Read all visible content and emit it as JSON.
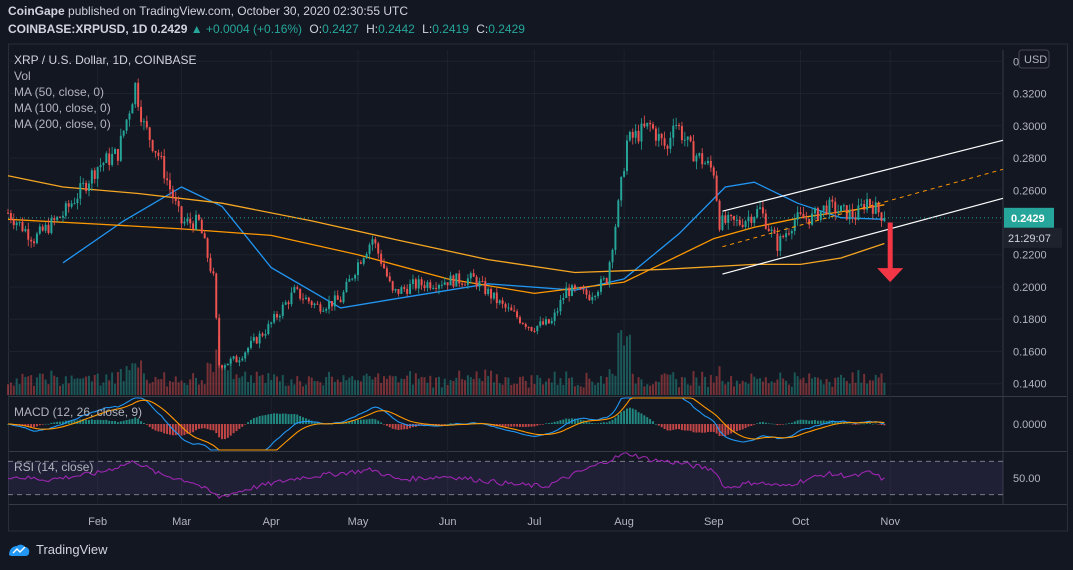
{
  "header": {
    "publisher": "CoinGape",
    "published_text": "published on TradingView.com, October 30, 2020 02:30:55 UTC",
    "symbol_line": "COINBASE:XRPUSD, 1D",
    "last": "0.2429",
    "change": "+0.0004 (+0.16%)",
    "o": "0.2427",
    "h": "0.2442",
    "l": "0.2419",
    "c": "0.2429",
    "o_label": "O:",
    "h_label": "H:",
    "l_label": "L:",
    "c_label": "C:"
  },
  "legend": {
    "title": "XRP / U.S. Dollar, 1D, COINBASE",
    "vol": "Vol",
    "ma50": "MA (50, close, 0)",
    "ma100": "MA (100, close, 0)",
    "ma200": "MA (200, close, 0)"
  },
  "currency_badge": "USD",
  "price_label": "0.2429",
  "countdown": "21:29:07",
  "macd_label": "MACD (12, 26, close, 9)",
  "rsi_label": "RSI (14, close)",
  "footer_brand": "TradingView",
  "colors": {
    "up": "#26a69a",
    "down": "#ef5350",
    "ma_blue": "#2196f3",
    "ma_orange": "#ff9800",
    "ma_gold": "#f5a623",
    "rsi": "#9c27b0",
    "arrow": "#f23645"
  },
  "chart_data": {
    "type": "candlestick",
    "symbol": "XRPUSD",
    "price_axis": {
      "ylim": [
        0.133,
        0.347
      ],
      "ticks": [
        "0.3400",
        "0.3200",
        "0.3000",
        "0.2800",
        "0.2600",
        "0.2400",
        "0.2200",
        "0.2000",
        "0.1800",
        "0.1600",
        "0.1400"
      ],
      "tick_values": [
        0.34,
        0.32,
        0.3,
        0.28,
        0.26,
        0.24,
        0.22,
        0.2,
        0.18,
        0.16,
        0.14
      ]
    },
    "time_axis": {
      "labels": [
        "Feb",
        "Mar",
        "Apr",
        "May",
        "Jun",
        "Jul",
        "Aug",
        "Sep",
        "Oct",
        "Nov"
      ],
      "label_dates": [
        "2020-02-01",
        "2020-03-01",
        "2020-04-01",
        "2020-05-01",
        "2020-06-01",
        "2020-07-01",
        "2020-08-01",
        "2020-09-01",
        "2020-10-01",
        "2020-11-01"
      ],
      "start_date": "2020-01-01",
      "end_date": "2020-12-10"
    },
    "price_path": [
      [
        "2020-01-01",
        0.246
      ],
      [
        "2020-01-10",
        0.23
      ],
      [
        "2020-01-20",
        0.245
      ],
      [
        "2020-01-27",
        0.262
      ],
      [
        "2020-02-01",
        0.275
      ],
      [
        "2020-02-08",
        0.283
      ],
      [
        "2020-02-14",
        0.325
      ],
      [
        "2020-02-17",
        0.3
      ],
      [
        "2020-02-22",
        0.282
      ],
      [
        "2020-03-01",
        0.24
      ],
      [
        "2020-03-07",
        0.24
      ],
      [
        "2020-03-12",
        0.205
      ],
      [
        "2020-03-14",
        0.152
      ],
      [
        "2020-03-20",
        0.155
      ],
      [
        "2020-03-31",
        0.175
      ],
      [
        "2020-04-09",
        0.197
      ],
      [
        "2020-04-17",
        0.188
      ],
      [
        "2020-04-25",
        0.192
      ],
      [
        "2020-05-01",
        0.215
      ],
      [
        "2020-05-06",
        0.23
      ],
      [
        "2020-05-10",
        0.212
      ],
      [
        "2020-05-13",
        0.196
      ],
      [
        "2020-05-20",
        0.201
      ],
      [
        "2020-06-01",
        0.204
      ],
      [
        "2020-06-10",
        0.205
      ],
      [
        "2020-06-20",
        0.188
      ],
      [
        "2020-06-30",
        0.175
      ],
      [
        "2020-07-07",
        0.178
      ],
      [
        "2020-07-12",
        0.198
      ],
      [
        "2020-07-20",
        0.195
      ],
      [
        "2020-07-26",
        0.205
      ],
      [
        "2020-07-30",
        0.25
      ],
      [
        "2020-08-02",
        0.29
      ],
      [
        "2020-08-06",
        0.295
      ],
      [
        "2020-08-10",
        0.3
      ],
      [
        "2020-08-16",
        0.285
      ],
      [
        "2020-08-18",
        0.305
      ],
      [
        "2020-08-24",
        0.285
      ],
      [
        "2020-09-01",
        0.272
      ],
      [
        "2020-09-03",
        0.24
      ],
      [
        "2020-09-10",
        0.24
      ],
      [
        "2020-09-17",
        0.248
      ],
      [
        "2020-09-23",
        0.226
      ],
      [
        "2020-09-29",
        0.242
      ],
      [
        "2020-10-05",
        0.243
      ],
      [
        "2020-10-10",
        0.25
      ],
      [
        "2020-10-15",
        0.247
      ],
      [
        "2020-10-20",
        0.244
      ],
      [
        "2020-10-24",
        0.254
      ],
      [
        "2020-10-30",
        0.2429
      ]
    ],
    "current_price": 0.2429,
    "ma": [
      {
        "name": "MA (50, close, 0)",
        "color": "#2196f3",
        "points": [
          [
            "2020-01-20",
            0.215
          ],
          [
            "2020-02-10",
            0.241
          ],
          [
            "2020-03-01",
            0.262
          ],
          [
            "2020-03-15",
            0.25
          ],
          [
            "2020-04-01",
            0.212
          ],
          [
            "2020-04-25",
            0.187
          ],
          [
            "2020-05-15",
            0.193
          ],
          [
            "2020-06-15",
            0.202
          ],
          [
            "2020-07-15",
            0.198
          ],
          [
            "2020-08-01",
            0.205
          ],
          [
            "2020-08-20",
            0.233
          ],
          [
            "2020-09-05",
            0.262
          ],
          [
            "2020-09-15",
            0.265
          ],
          [
            "2020-09-30",
            0.252
          ],
          [
            "2020-10-15",
            0.243
          ],
          [
            "2020-10-30",
            0.242
          ]
        ]
      },
      {
        "name": "MA (100, close, 0)",
        "color": "#ff9800",
        "points": [
          [
            "2020-01-01",
            0.242
          ],
          [
            "2020-02-01",
            0.239
          ],
          [
            "2020-03-01",
            0.236
          ],
          [
            "2020-04-01",
            0.232
          ],
          [
            "2020-05-01",
            0.22
          ],
          [
            "2020-06-01",
            0.205
          ],
          [
            "2020-07-01",
            0.196
          ],
          [
            "2020-08-01",
            0.203
          ],
          [
            "2020-09-01",
            0.23
          ],
          [
            "2020-09-15",
            0.237
          ],
          [
            "2020-10-01",
            0.243
          ],
          [
            "2020-10-20",
            0.248
          ],
          [
            "2020-10-30",
            0.251
          ]
        ]
      },
      {
        "name": "MA (200, close, 0)",
        "color": "#f5a623",
        "points": [
          [
            "2020-01-01",
            0.269
          ],
          [
            "2020-01-20",
            0.262
          ],
          [
            "2020-02-15",
            0.258
          ],
          [
            "2020-03-15",
            0.252
          ],
          [
            "2020-04-15",
            0.241
          ],
          [
            "2020-05-15",
            0.229
          ],
          [
            "2020-06-15",
            0.217
          ],
          [
            "2020-07-15",
            0.209
          ],
          [
            "2020-08-15",
            0.211
          ],
          [
            "2020-09-15",
            0.214
          ],
          [
            "2020-10-01",
            0.214
          ],
          [
            "2020-10-15",
            0.218
          ],
          [
            "2020-10-30",
            0.227
          ]
        ]
      }
    ],
    "channel": {
      "upper": [
        [
          "2020-09-04",
          0.247
        ],
        [
          "2020-12-10",
          0.291
        ]
      ],
      "lower": [
        [
          "2020-09-04",
          0.208
        ],
        [
          "2020-12-10",
          0.255
        ]
      ],
      "mid_dashed": [
        [
          "2020-09-04",
          0.225
        ],
        [
          "2020-12-10",
          0.273
        ]
      ],
      "color": "#ffffff"
    },
    "arrow": {
      "date": "2020-11-01",
      "from": 0.24,
      "to": 0.203,
      "direction": "down"
    },
    "volume_peak_date": "2020-08-01",
    "macd": {
      "ylim": [
        -0.015,
        0.015
      ],
      "ticks": [
        "0.0000"
      ],
      "tick_values": [
        0
      ]
    },
    "rsi": {
      "ylim": [
        20,
        80
      ],
      "ticks": [
        "50.00"
      ],
      "tick_values": [
        50
      ],
      "bands": [
        70,
        30
      ],
      "points": [
        [
          "2020-01-01",
          52
        ],
        [
          "2020-01-15",
          48
        ],
        [
          "2020-02-01",
          56
        ],
        [
          "2020-02-14",
          70
        ],
        [
          "2020-02-22",
          55
        ],
        [
          "2020-03-05",
          45
        ],
        [
          "2020-03-14",
          27
        ],
        [
          "2020-03-25",
          38
        ],
        [
          "2020-04-10",
          50
        ],
        [
          "2020-05-06",
          60
        ],
        [
          "2020-05-15",
          48
        ],
        [
          "2020-06-01",
          52
        ],
        [
          "2020-06-25",
          42
        ],
        [
          "2020-07-05",
          40
        ],
        [
          "2020-07-15",
          55
        ],
        [
          "2020-08-02",
          80
        ],
        [
          "2020-08-10",
          72
        ],
        [
          "2020-08-20",
          68
        ],
        [
          "2020-09-01",
          60
        ],
        [
          "2020-09-05",
          38
        ],
        [
          "2020-09-15",
          45
        ],
        [
          "2020-09-25",
          40
        ],
        [
          "2020-10-10",
          55
        ],
        [
          "2020-10-20",
          52
        ],
        [
          "2020-10-25",
          57
        ],
        [
          "2020-10-30",
          48
        ]
      ]
    }
  }
}
